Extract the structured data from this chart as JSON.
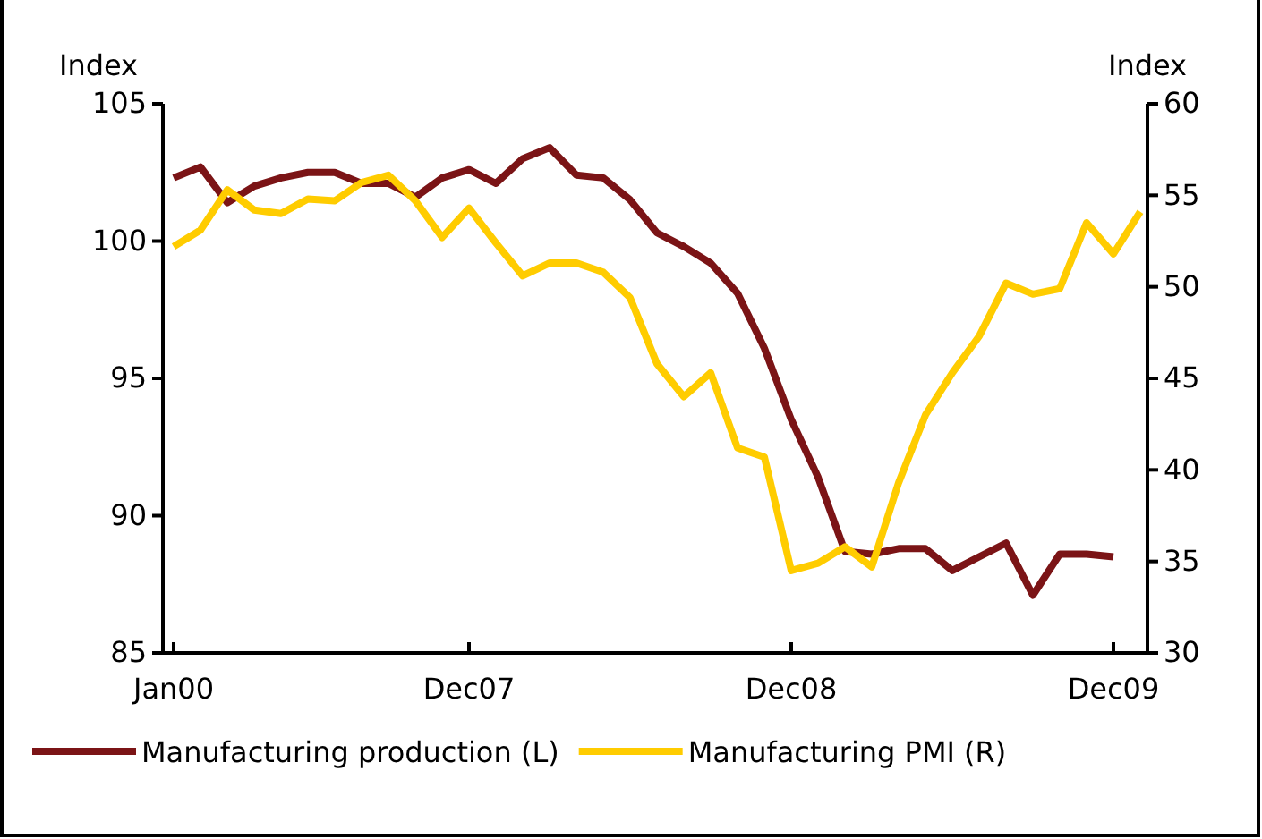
{
  "chart_data": {
    "type": "line",
    "ylabel": "Index",
    "y2label": "Index",
    "categories": [
      "Jan00",
      null,
      null,
      null,
      null,
      null,
      null,
      null,
      null,
      null,
      null,
      "Dec07",
      null,
      null,
      null,
      null,
      null,
      null,
      null,
      null,
      null,
      null,
      null,
      "Dec08",
      null,
      null,
      null,
      null,
      null,
      null,
      null,
      null,
      null,
      null,
      null,
      "Dec09",
      null
    ],
    "ylim": [
      85,
      105
    ],
    "yticks": [
      85,
      90,
      95,
      100,
      105
    ],
    "y2lim": [
      30,
      60
    ],
    "y2ticks": [
      30,
      35,
      40,
      45,
      50,
      55,
      60
    ],
    "series": [
      {
        "name": "Manufacturing production (L)",
        "color": "#7b1416",
        "values": [
          102.3,
          102.7,
          101.4,
          102.0,
          102.3,
          102.5,
          102.5,
          102.1,
          102.1,
          101.6,
          102.3,
          102.6,
          102.1,
          103.0,
          103.4,
          102.4,
          102.3,
          101.5,
          100.3,
          99.8,
          99.2,
          98.1,
          96.1,
          93.5,
          91.4,
          88.7,
          88.6,
          88.8,
          88.8,
          88.0,
          88.5,
          89.0,
          87.1,
          88.6,
          88.6,
          88.5,
          null
        ]
      },
      {
        "name": "Manufacturing PMI (R)",
        "color": "#ffcc00",
        "axis": "y2",
        "values": [
          52.2,
          53.1,
          55.3,
          54.2,
          54.0,
          54.8,
          54.7,
          55.7,
          56.1,
          54.7,
          52.7,
          54.3,
          52.4,
          50.6,
          51.3,
          51.3,
          50.8,
          49.4,
          45.8,
          44.0,
          45.3,
          41.2,
          40.7,
          34.5,
          34.9,
          35.8,
          34.7,
          39.3,
          43.0,
          45.3,
          47.3,
          50.2,
          49.6,
          49.9,
          53.5,
          51.8,
          54.1
        ]
      }
    ],
    "legend": "bottom",
    "grid": false,
    "marker": "none",
    "line_style": "solid"
  }
}
